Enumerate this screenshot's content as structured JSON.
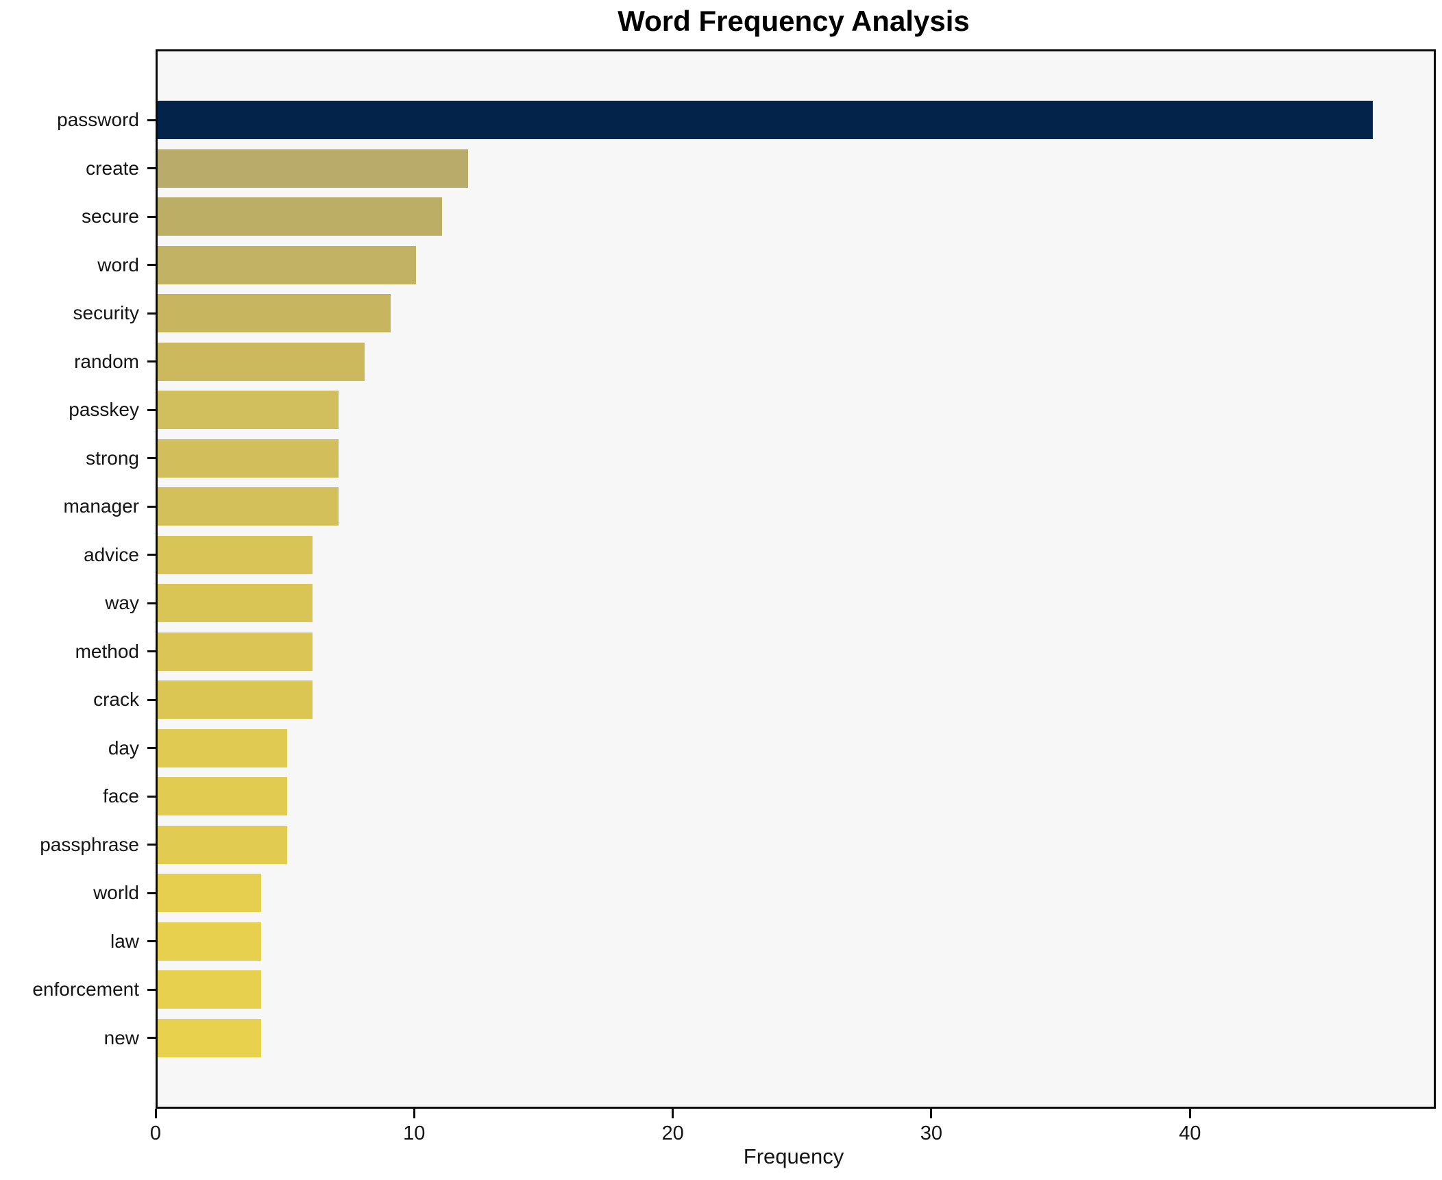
{
  "title": "Word Frequency Analysis",
  "chart_data": {
    "type": "bar",
    "orientation": "horizontal",
    "title": "Word Frequency Analysis",
    "xlabel": "Frequency",
    "ylabel": "",
    "categories": [
      "password",
      "create",
      "secure",
      "word",
      "security",
      "random",
      "passkey",
      "strong",
      "manager",
      "advice",
      "way",
      "method",
      "crack",
      "day",
      "face",
      "passphrase",
      "world",
      "law",
      "enforcement",
      "new"
    ],
    "values": [
      47,
      12,
      11,
      10,
      9,
      8,
      7,
      7,
      7,
      6,
      6,
      6,
      6,
      5,
      5,
      5,
      4,
      4,
      4,
      4
    ],
    "bar_colors": [
      "#03234b",
      "#b9ab69",
      "#bdae66",
      "#c2b263",
      "#c7b560",
      "#ccb95d",
      "#d1be5c",
      "#d2bf5b",
      "#d3c05a",
      "#d8c457",
      "#d9c456",
      "#dac555",
      "#dbc654",
      "#e0ca52",
      "#e1cb51",
      "#e2cb51",
      "#e6cf4f",
      "#e7d04e",
      "#e7d04e",
      "#e8d14d"
    ],
    "xlim": [
      0,
      49.35
    ],
    "x_ticks": [
      0,
      10,
      20,
      30,
      40
    ],
    "grid": false,
    "legend": "none",
    "plot_background": "#f7f7f8",
    "figure_background": "#ffffff",
    "spine_color": "#0c0c0c",
    "text_color": "#151515"
  }
}
